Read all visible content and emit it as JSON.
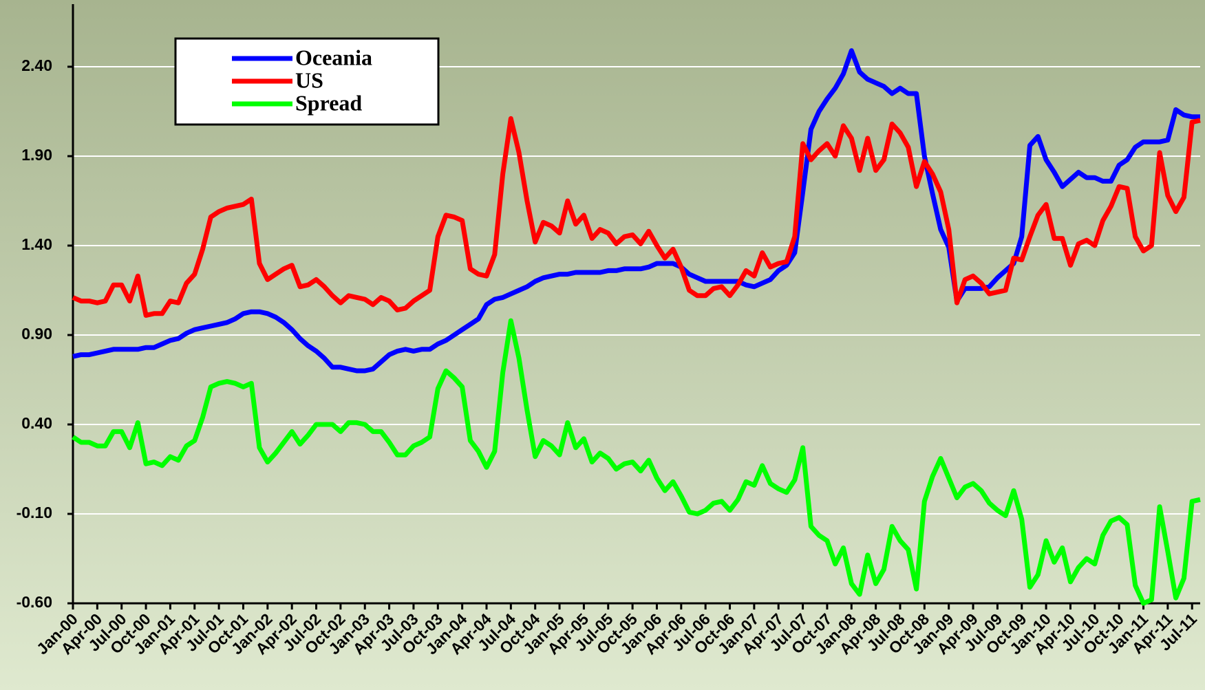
{
  "chart_data": {
    "type": "line",
    "categories": [
      "Jan-00",
      null,
      null,
      "Apr-00",
      null,
      null,
      "Jul-00",
      null,
      null,
      "Oct-00",
      null,
      null,
      "Jan-01",
      null,
      null,
      "Apr-01",
      null,
      null,
      "Jul-01",
      null,
      null,
      "Oct-01",
      null,
      null,
      "Jan-02",
      null,
      null,
      "Apr-02",
      null,
      null,
      "Jul-02",
      null,
      null,
      "Oct-02",
      null,
      null,
      "Jan-03",
      null,
      null,
      "Apr-03",
      null,
      null,
      "Jul-03",
      null,
      null,
      "Oct-03",
      null,
      null,
      "Jan-04",
      null,
      null,
      "Apr-04",
      null,
      null,
      "Jul-04",
      null,
      null,
      "Oct-04",
      null,
      null,
      "Jan-05",
      null,
      null,
      "Apr-05",
      null,
      null,
      "Jul-05",
      null,
      null,
      "Oct-05",
      null,
      null,
      "Jan-06",
      null,
      null,
      "Apr-06",
      null,
      null,
      "Jul-06",
      null,
      null,
      "Oct-06",
      null,
      null,
      "Jan-07",
      null,
      null,
      "Apr-07",
      null,
      null,
      "Jul-07",
      null,
      null,
      "Oct-07",
      null,
      null,
      "Jan-08",
      null,
      null,
      "Apr-08",
      null,
      null,
      "Jul-08",
      null,
      null,
      "Oct-08",
      null,
      null,
      "Jan-09",
      null,
      null,
      "Apr-09",
      null,
      null,
      "Jul-09",
      null,
      null,
      "Oct-09",
      null,
      null,
      "Jan-10",
      null,
      null,
      "Apr-10",
      null,
      null,
      "Jul-10",
      null,
      null,
      "Oct-10",
      null,
      null,
      "Jan-11",
      null,
      null,
      "Apr-11",
      null,
      null,
      "Jul-11",
      null
    ],
    "series": [
      {
        "name": "Oceania",
        "color": "#0000ff",
        "values": [
          0.78,
          0.79,
          0.79,
          0.8,
          0.81,
          0.82,
          0.82,
          0.82,
          0.82,
          0.83,
          0.83,
          0.85,
          0.87,
          0.88,
          0.91,
          0.93,
          0.94,
          0.95,
          0.96,
          0.97,
          0.99,
          1.02,
          1.03,
          1.03,
          1.02,
          1.0,
          0.97,
          0.93,
          0.88,
          0.84,
          0.81,
          0.77,
          0.72,
          0.72,
          0.71,
          0.7,
          0.7,
          0.71,
          0.75,
          0.79,
          0.81,
          0.82,
          0.81,
          0.82,
          0.82,
          0.85,
          0.87,
          0.9,
          0.93,
          0.96,
          0.99,
          1.07,
          1.1,
          1.11,
          1.13,
          1.15,
          1.17,
          1.2,
          1.22,
          1.23,
          1.24,
          1.24,
          1.25,
          1.25,
          1.25,
          1.25,
          1.26,
          1.26,
          1.27,
          1.27,
          1.27,
          1.28,
          1.3,
          1.3,
          1.3,
          1.28,
          1.24,
          1.22,
          1.2,
          1.2,
          1.2,
          1.2,
          1.2,
          1.18,
          1.17,
          1.19,
          1.21,
          1.26,
          1.29,
          1.36,
          1.7,
          2.05,
          2.15,
          2.22,
          2.28,
          2.36,
          2.49,
          2.37,
          2.33,
          2.31,
          2.29,
          2.25,
          2.28,
          2.25,
          2.25,
          1.9,
          1.69,
          1.49,
          1.39,
          1.09,
          1.16,
          1.16,
          1.16,
          1.17,
          1.22,
          1.26,
          1.3,
          1.45,
          1.96,
          2.01,
          1.88,
          1.81,
          1.73,
          1.77,
          1.81,
          1.78,
          1.78,
          1.76,
          1.76,
          1.85,
          1.88,
          1.95,
          1.98,
          1.98,
          1.98,
          1.99,
          2.16,
          2.13,
          2.12,
          2.12
        ]
      },
      {
        "name": "US",
        "color": "#ff0000",
        "values": [
          1.11,
          1.09,
          1.09,
          1.08,
          1.09,
          1.18,
          1.18,
          1.09,
          1.23,
          1.01,
          1.02,
          1.02,
          1.09,
          1.08,
          1.19,
          1.24,
          1.38,
          1.56,
          1.59,
          1.61,
          1.62,
          1.63,
          1.66,
          1.3,
          1.21,
          1.24,
          1.27,
          1.29,
          1.17,
          1.18,
          1.21,
          1.17,
          1.12,
          1.08,
          1.12,
          1.11,
          1.1,
          1.07,
          1.11,
          1.09,
          1.04,
          1.05,
          1.09,
          1.12,
          1.15,
          1.45,
          1.57,
          1.56,
          1.54,
          1.27,
          1.24,
          1.23,
          1.35,
          1.8,
          2.11,
          1.92,
          1.65,
          1.42,
          1.53,
          1.51,
          1.47,
          1.65,
          1.52,
          1.57,
          1.44,
          1.49,
          1.47,
          1.41,
          1.45,
          1.46,
          1.41,
          1.48,
          1.4,
          1.33,
          1.38,
          1.28,
          1.15,
          1.12,
          1.12,
          1.16,
          1.17,
          1.12,
          1.18,
          1.26,
          1.23,
          1.36,
          1.28,
          1.3,
          1.31,
          1.45,
          1.97,
          1.88,
          1.93,
          1.97,
          1.9,
          2.07,
          2.0,
          1.82,
          2.0,
          1.82,
          1.88,
          2.08,
          2.03,
          1.95,
          1.73,
          1.87,
          1.8,
          1.7,
          1.49,
          1.08,
          1.21,
          1.23,
          1.19,
          1.13,
          1.14,
          1.15,
          1.33,
          1.32,
          1.45,
          1.57,
          1.63,
          1.44,
          1.44,
          1.29,
          1.41,
          1.43,
          1.4,
          1.54,
          1.62,
          1.73,
          1.72,
          1.45,
          1.37,
          1.4,
          1.92,
          1.68,
          1.59,
          1.67,
          2.09,
          2.1
        ]
      },
      {
        "name": "Spread",
        "color": "#00ff00",
        "values": [
          0.33,
          0.3,
          0.3,
          0.28,
          0.28,
          0.36,
          0.36,
          0.27,
          0.41,
          0.18,
          0.19,
          0.17,
          0.22,
          0.2,
          0.28,
          0.31,
          0.44,
          0.61,
          0.63,
          0.64,
          0.63,
          0.61,
          0.63,
          0.27,
          0.19,
          0.24,
          0.3,
          0.36,
          0.29,
          0.34,
          0.4,
          0.4,
          0.4,
          0.36,
          0.41,
          0.41,
          0.4,
          0.36,
          0.36,
          0.3,
          0.23,
          0.23,
          0.28,
          0.3,
          0.33,
          0.6,
          0.7,
          0.66,
          0.61,
          0.31,
          0.25,
          0.16,
          0.25,
          0.69,
          0.98,
          0.77,
          0.48,
          0.22,
          0.31,
          0.28,
          0.23,
          0.41,
          0.27,
          0.32,
          0.19,
          0.24,
          0.21,
          0.15,
          0.18,
          0.19,
          0.14,
          0.2,
          0.1,
          0.03,
          0.08,
          0.0,
          -0.09,
          -0.1,
          -0.08,
          -0.04,
          -0.03,
          -0.08,
          -0.02,
          0.08,
          0.06,
          0.17,
          0.07,
          0.04,
          0.02,
          0.09,
          0.27,
          -0.17,
          -0.22,
          -0.25,
          -0.38,
          -0.29,
          -0.49,
          -0.55,
          -0.33,
          -0.49,
          -0.41,
          -0.17,
          -0.25,
          -0.3,
          -0.52,
          -0.03,
          0.11,
          0.21,
          0.1,
          -0.01,
          0.05,
          0.07,
          0.03,
          -0.04,
          -0.08,
          -0.11,
          0.03,
          -0.13,
          -0.51,
          -0.44,
          -0.25,
          -0.37,
          -0.29,
          -0.48,
          -0.4,
          -0.35,
          -0.38,
          -0.22,
          -0.14,
          -0.12,
          -0.16,
          -0.5,
          -0.6,
          -0.58,
          -0.06,
          -0.31,
          -0.57,
          -0.46,
          -0.03,
          -0.02
        ]
      }
    ],
    "ylim": [
      -0.6,
      2.75
    ],
    "yticks": [
      {
        "value": -0.6,
        "label": "-0.60"
      },
      {
        "value": -0.1,
        "label": "-0.10"
      },
      {
        "value": 0.4,
        "label": "0.40"
      },
      {
        "value": 0.9,
        "label": "0.90"
      },
      {
        "value": 1.4,
        "label": "1.40"
      },
      {
        "value": 1.9,
        "label": "1.90"
      },
      {
        "value": 2.4,
        "label": "2.40"
      }
    ],
    "grid": true,
    "legend": "upper left"
  }
}
